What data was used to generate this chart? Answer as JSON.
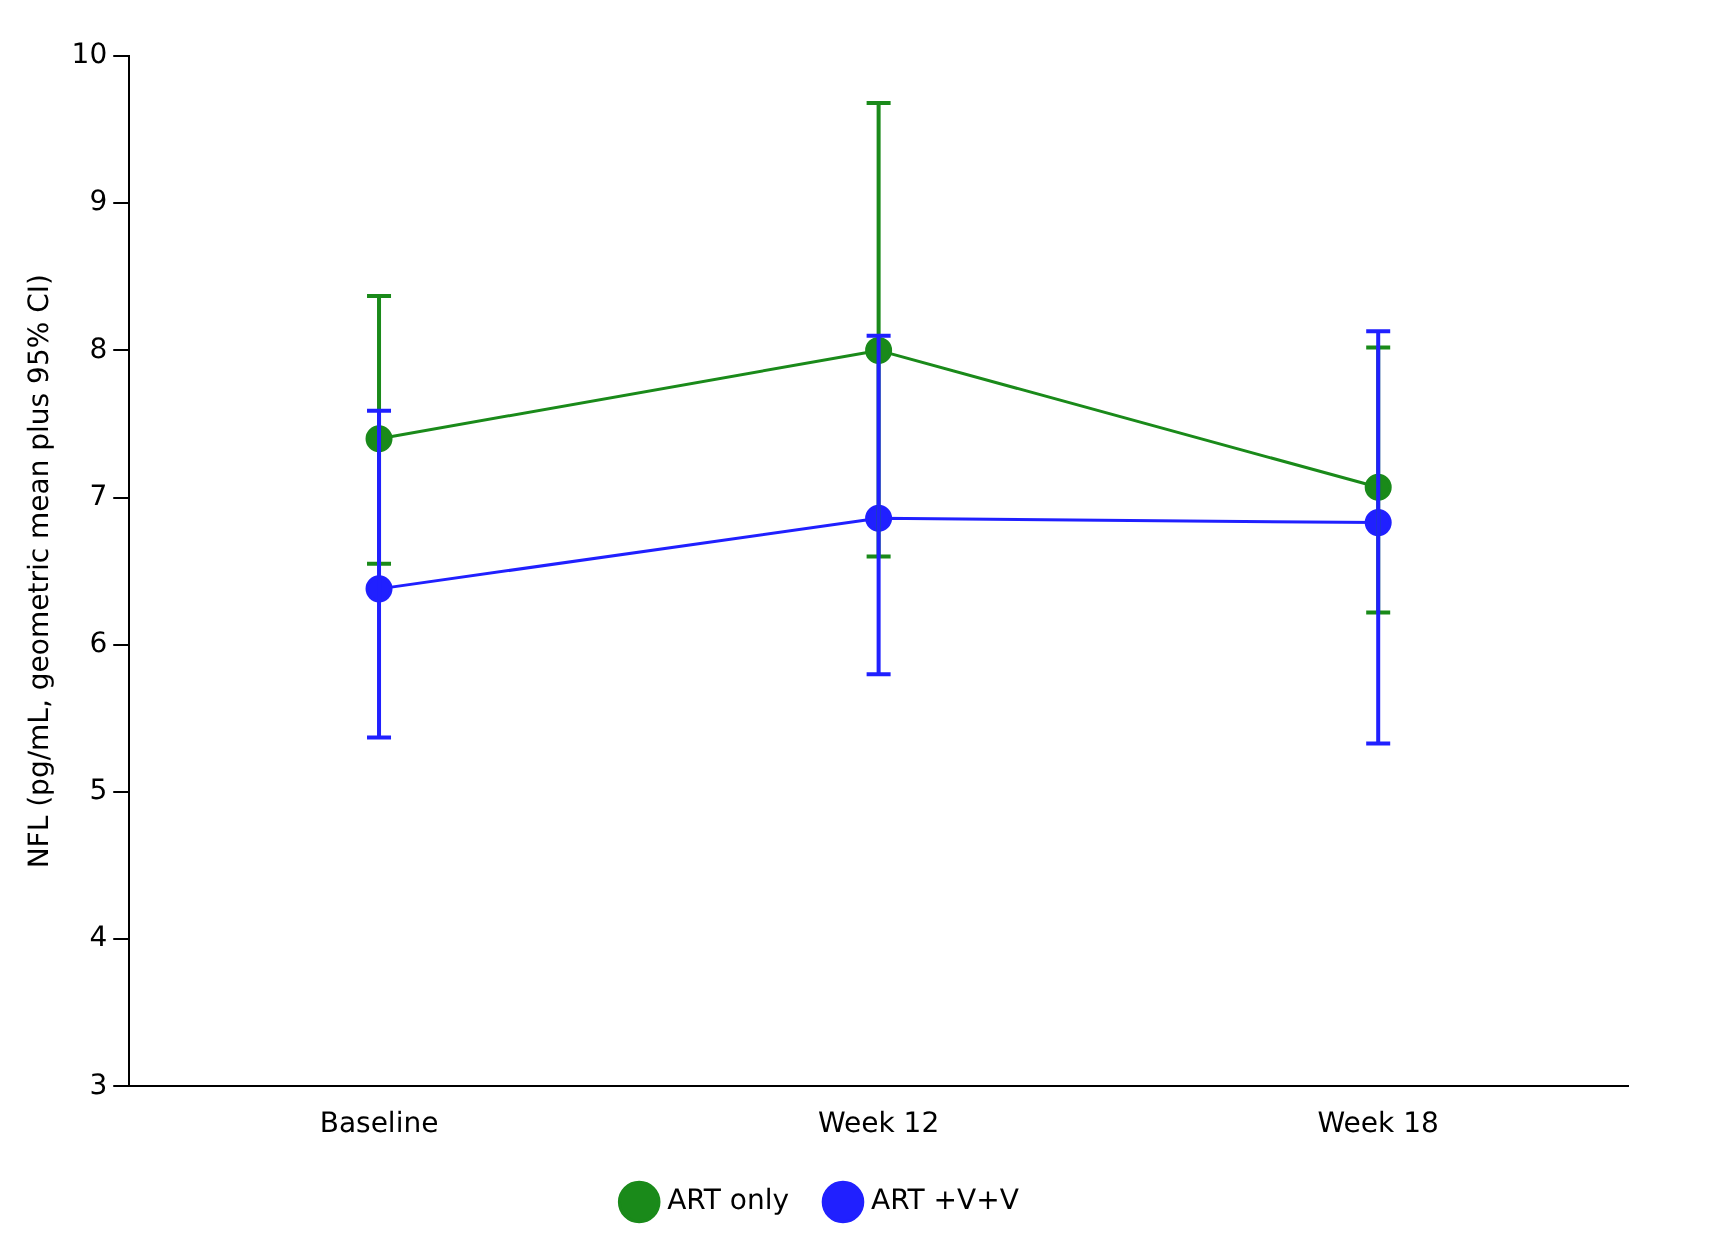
{
  "chart_data": {
    "type": "line",
    "ylabel": "NFL (pg/mL, geometric mean plus 95% CI)",
    "categories": [
      "Baseline",
      "Week 12",
      "Week 18"
    ],
    "ylim": [
      3,
      10
    ],
    "yticks": [
      3,
      4,
      5,
      6,
      7,
      8,
      9,
      10
    ],
    "series": [
      {
        "name": "ART only",
        "color": "#1a8a1a",
        "values": [
          7.4,
          8.0,
          7.07
        ],
        "errors": [
          [
            6.55,
            8.37
          ],
          [
            6.6,
            9.68
          ],
          [
            6.22,
            8.02
          ]
        ]
      },
      {
        "name": "ART +V+V",
        "color": "#2020ff",
        "values": [
          6.38,
          6.86,
          6.83
        ],
        "errors": [
          [
            5.37,
            7.59
          ],
          [
            5.8,
            8.1
          ],
          [
            5.33,
            8.13
          ]
        ]
      }
    ],
    "grid": false,
    "legend": "bottom",
    "marker": "circle",
    "line_style": "solid"
  }
}
